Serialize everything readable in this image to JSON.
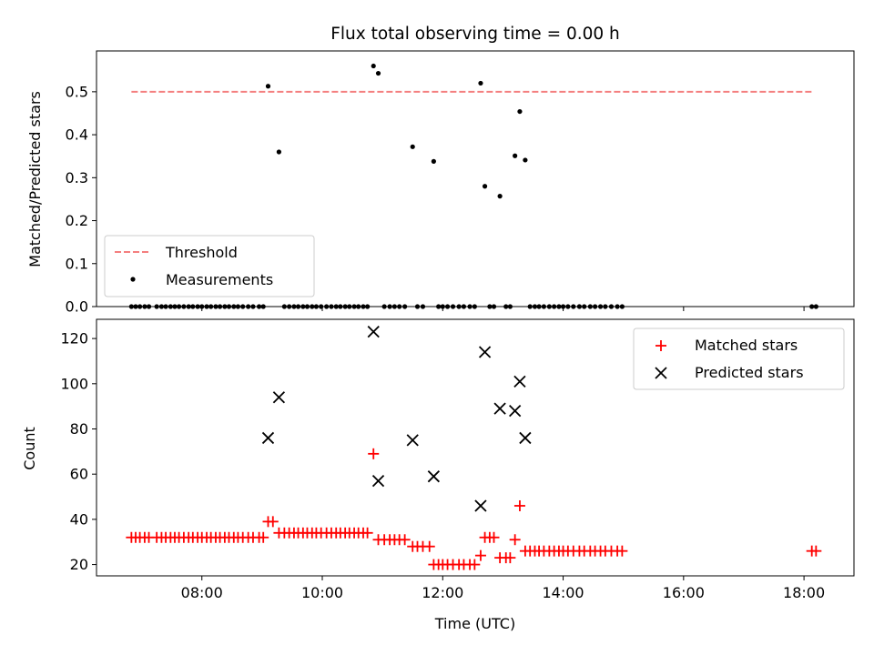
{
  "chart_data": [
    {
      "type": "scatter",
      "title": "Flux total observing time = 0.00 h",
      "xlabel": "",
      "ylabel": "Matched/Predicted stars",
      "xlim": [
        6.25,
        18.83
      ],
      "ylim": [
        0,
        0.595
      ],
      "yticks": [
        0,
        0.1,
        0.2,
        0.3,
        0.4,
        0.5
      ],
      "ytick_labels": [
        "0.0",
        "0.1",
        "0.2",
        "0.3",
        "0.4",
        "0.5"
      ],
      "legend_position": "lower-left",
      "threshold": {
        "name": "Threshold",
        "value": 0.5,
        "x_range": [
          6.83,
          18.17
        ],
        "color": "#f47f7f"
      },
      "series": [
        {
          "name": "Measurements",
          "color": "#000000",
          "x": [
            9.1,
            9.28,
            10.85,
            10.93,
            11.5,
            11.85,
            12.63,
            12.7,
            12.95,
            13.2,
            13.28,
            13.37,
            6.83,
            6.9,
            6.97,
            7.05,
            7.12,
            7.25,
            7.33,
            7.4,
            7.48,
            7.55,
            7.62,
            7.7,
            7.78,
            7.85,
            7.93,
            8.0,
            8.08,
            8.15,
            8.23,
            8.3,
            8.38,
            8.45,
            8.53,
            8.6,
            8.68,
            8.77,
            8.85,
            8.95,
            9.02,
            9.37,
            9.45,
            9.53,
            9.6,
            9.68,
            9.75,
            9.83,
            9.9,
            9.98,
            10.07,
            10.15,
            10.23,
            10.3,
            10.38,
            10.45,
            10.53,
            10.6,
            10.68,
            10.75,
            11.03,
            11.12,
            11.2,
            11.28,
            11.37,
            11.58,
            11.67,
            11.93,
            12.0,
            12.08,
            12.17,
            12.27,
            12.35,
            12.45,
            12.53,
            12.78,
            12.85,
            13.05,
            13.12,
            13.45,
            13.53,
            13.6,
            13.68,
            13.77,
            13.85,
            13.93,
            14.0,
            14.08,
            14.17,
            14.27,
            14.35,
            14.45,
            14.53,
            14.62,
            14.7,
            14.8,
            14.9,
            14.98,
            18.13,
            18.2
          ],
          "y": [
            0.513,
            0.36,
            0.56,
            0.543,
            0.372,
            0.338,
            0.52,
            0.28,
            0.257,
            0.351,
            0.454,
            0.341,
            0,
            0,
            0,
            0,
            0,
            0,
            0,
            0,
            0,
            0,
            0,
            0,
            0,
            0,
            0,
            0,
            0,
            0,
            0,
            0,
            0,
            0,
            0,
            0,
            0,
            0,
            0,
            0,
            0,
            0,
            0,
            0,
            0,
            0,
            0,
            0,
            0,
            0,
            0,
            0,
            0,
            0,
            0,
            0,
            0,
            0,
            0,
            0,
            0,
            0,
            0,
            0,
            0,
            0,
            0,
            0,
            0,
            0,
            0,
            0,
            0,
            0,
            0,
            0,
            0,
            0,
            0,
            0,
            0,
            0,
            0,
            0,
            0,
            0,
            0,
            0,
            0,
            0,
            0,
            0,
            0,
            0,
            0,
            0,
            0,
            0,
            0,
            0
          ]
        }
      ]
    },
    {
      "type": "scatter",
      "title": "",
      "xlabel": "Time (UTC)",
      "ylabel": "Count",
      "xlim": [
        6.25,
        18.83
      ],
      "ylim": [
        15,
        128.5
      ],
      "yticks": [
        20,
        40,
        60,
        80,
        100,
        120
      ],
      "ytick_labels": [
        "20",
        "40",
        "60",
        "80",
        "100",
        "120"
      ],
      "xticks": [
        8,
        10,
        12,
        14,
        16,
        18
      ],
      "xtick_labels": [
        "08:00",
        "10:00",
        "12:00",
        "14:00",
        "16:00",
        "18:00"
      ],
      "legend_position": "top-right",
      "series": [
        {
          "name": "Matched stars",
          "color": "#ff0000",
          "marker": "+",
          "x": [
            6.83,
            6.9,
            6.97,
            7.05,
            7.12,
            7.25,
            7.33,
            7.4,
            7.48,
            7.55,
            7.62,
            7.7,
            7.78,
            7.85,
            7.93,
            8.0,
            8.08,
            8.15,
            8.23,
            8.3,
            8.38,
            8.45,
            8.53,
            8.6,
            8.68,
            8.77,
            8.85,
            8.95,
            9.02,
            9.1,
            9.18,
            9.28,
            9.37,
            9.45,
            9.53,
            9.6,
            9.68,
            9.75,
            9.83,
            9.9,
            9.98,
            10.07,
            10.15,
            10.23,
            10.3,
            10.38,
            10.45,
            10.53,
            10.6,
            10.68,
            10.75,
            10.85,
            10.93,
            11.03,
            11.12,
            11.2,
            11.28,
            11.37,
            11.5,
            11.58,
            11.67,
            11.78,
            11.85,
            11.93,
            12.0,
            12.08,
            12.17,
            12.27,
            12.35,
            12.45,
            12.53,
            12.63,
            12.7,
            12.78,
            12.85,
            12.95,
            13.05,
            13.12,
            13.2,
            13.28,
            13.37,
            13.45,
            13.53,
            13.6,
            13.68,
            13.77,
            13.85,
            13.93,
            14.0,
            14.08,
            14.17,
            14.27,
            14.35,
            14.45,
            14.53,
            14.62,
            14.7,
            14.8,
            14.9,
            14.98,
            18.13,
            18.2
          ],
          "y": [
            32,
            32,
            32,
            32,
            32,
            32,
            32,
            32,
            32,
            32,
            32,
            32,
            32,
            32,
            32,
            32,
            32,
            32,
            32,
            32,
            32,
            32,
            32,
            32,
            32,
            32,
            32,
            32,
            32,
            39,
            39,
            34,
            34,
            34,
            34,
            34,
            34,
            34,
            34,
            34,
            34,
            34,
            34,
            34,
            34,
            34,
            34,
            34,
            34,
            34,
            34,
            69,
            31,
            31,
            31,
            31,
            31,
            31,
            28,
            28,
            28,
            28,
            20,
            20,
            20,
            20,
            20,
            20,
            20,
            20,
            20,
            24,
            32,
            32,
            32,
            23,
            23,
            23,
            31,
            46,
            26,
            26,
            26,
            26,
            26,
            26,
            26,
            26,
            26,
            26,
            26,
            26,
            26,
            26,
            26,
            26,
            26,
            26,
            26,
            26,
            26,
            26
          ]
        },
        {
          "name": "Predicted stars",
          "color": "#000000",
          "marker": "x",
          "x": [
            9.1,
            9.28,
            10.85,
            10.93,
            11.5,
            11.85,
            12.63,
            12.7,
            12.95,
            13.2,
            13.28,
            13.37
          ],
          "y": [
            76,
            94,
            123,
            57,
            75,
            59,
            46,
            114,
            89,
            88,
            101,
            76
          ]
        }
      ]
    }
  ]
}
